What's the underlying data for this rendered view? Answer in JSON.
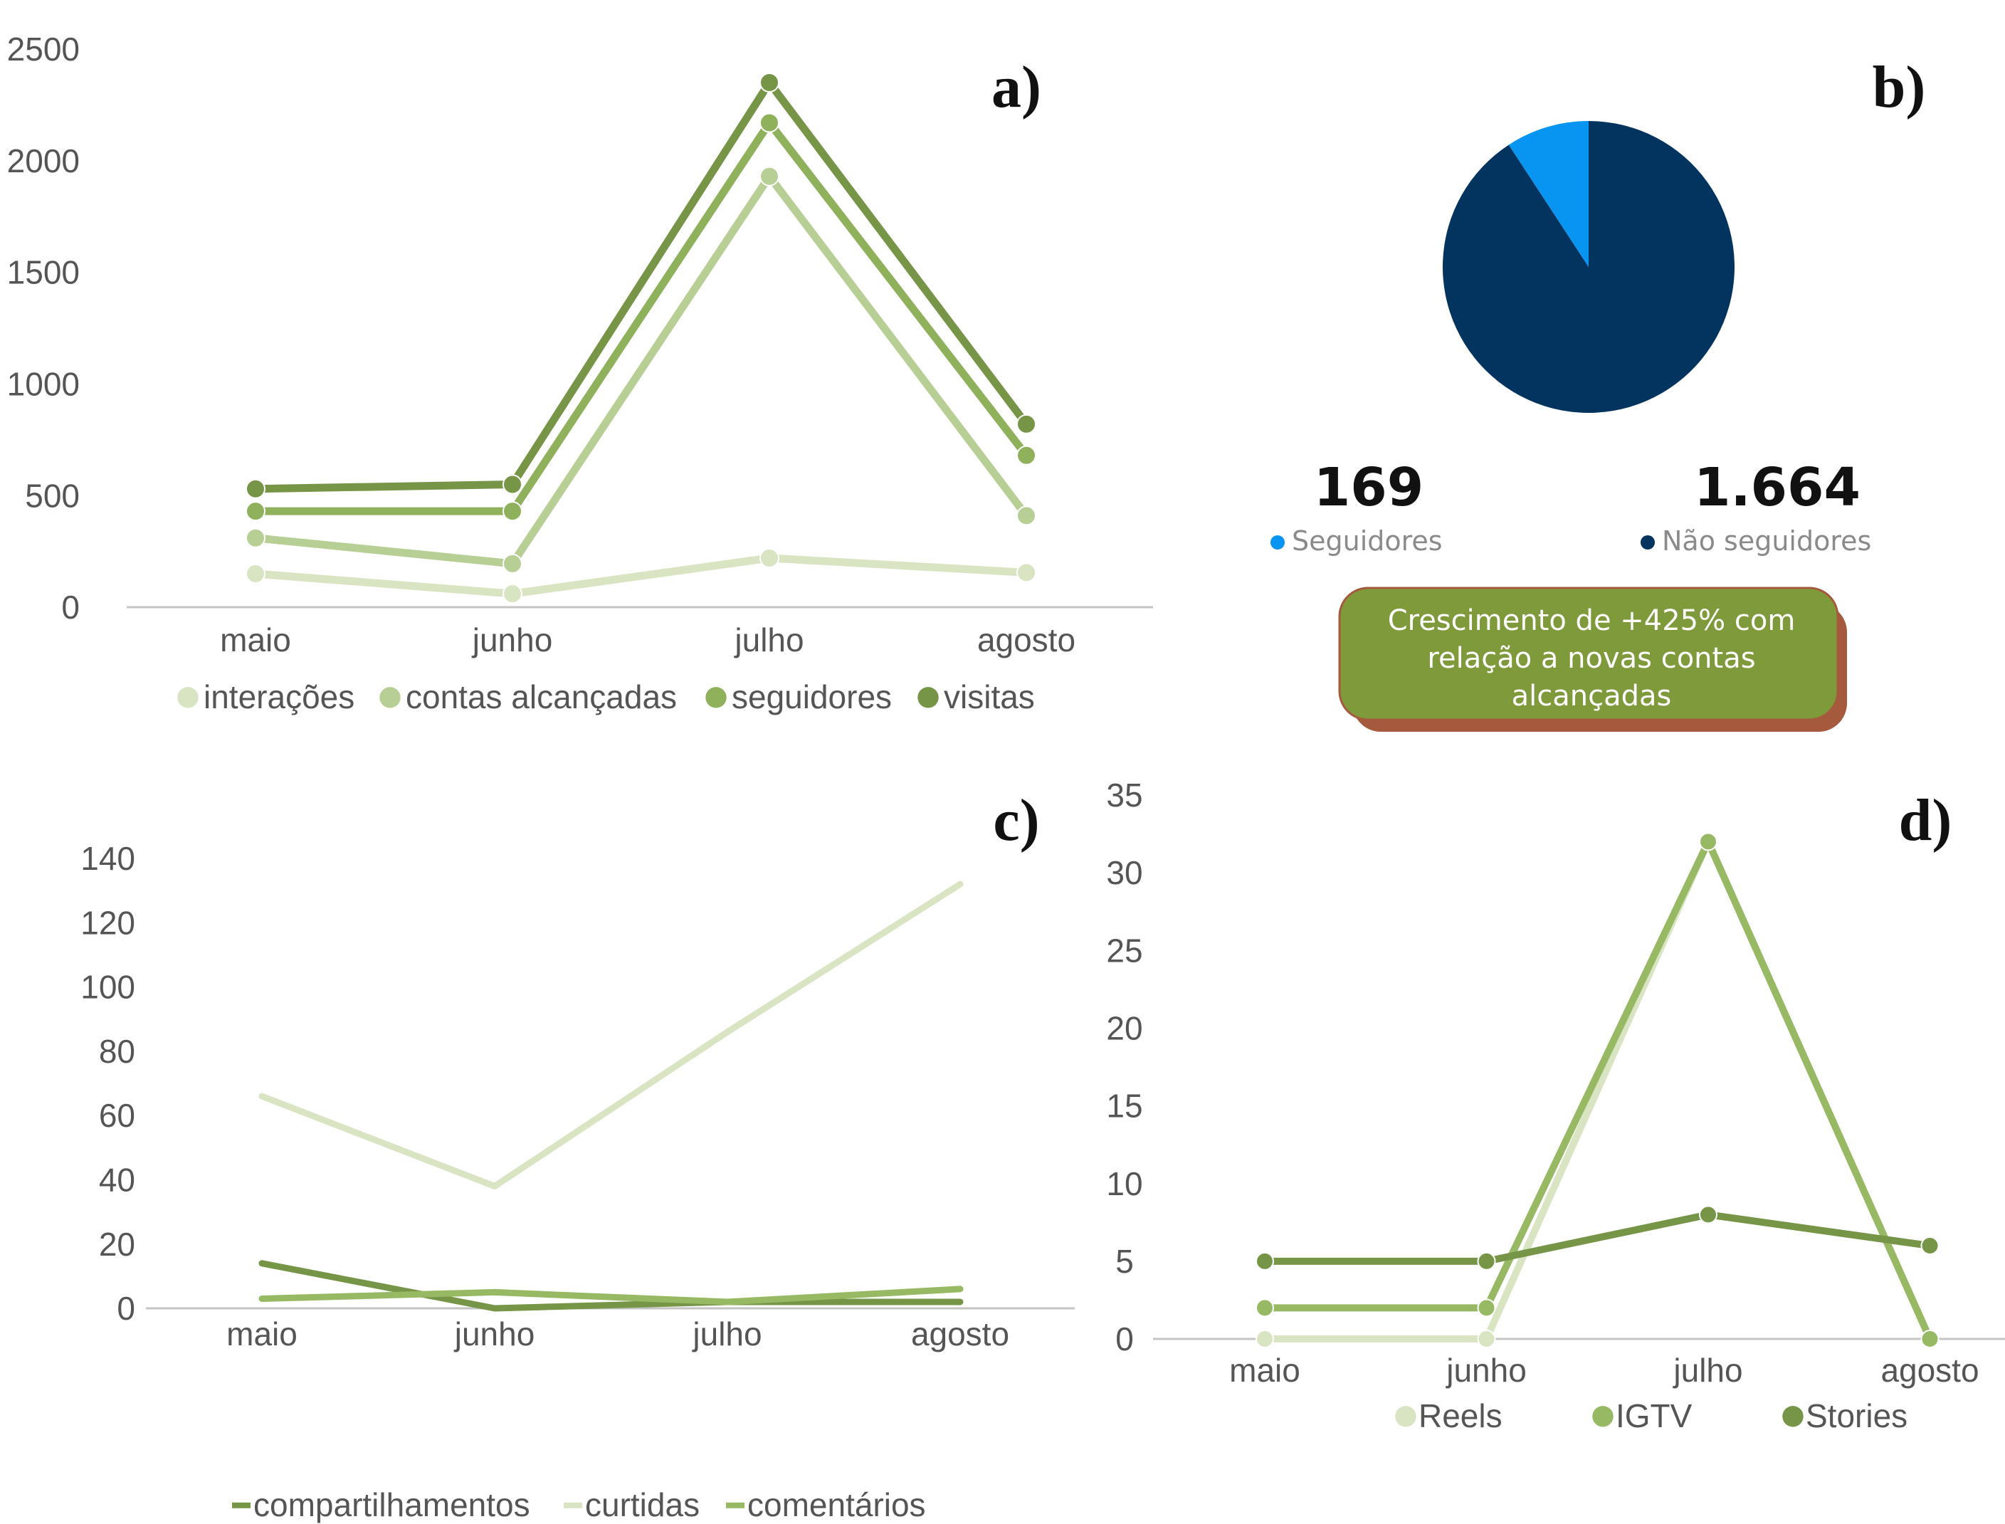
{
  "chart_data": [
    {
      "panel": "a)",
      "type": "line",
      "categories": [
        "maio",
        "junho",
        "julho",
        "agosto"
      ],
      "ylim": [
        0,
        2500
      ],
      "yticks": [
        "0",
        "500",
        "1000",
        "1500",
        "2000",
        "2500"
      ],
      "legend_position": "bottom",
      "series": [
        {
          "name": "interações",
          "values": [
            150,
            60,
            220,
            155
          ],
          "color": "#d8e4c2"
        },
        {
          "name": "contas alcançadas",
          "values": [
            310,
            195,
            1930,
            410
          ],
          "color": "#b7cf94"
        },
        {
          "name": "seguidores",
          "values": [
            430,
            430,
            2170,
            680
          ],
          "color": "#8fb15c"
        },
        {
          "name": "visitas",
          "values": [
            530,
            550,
            2350,
            820
          ],
          "color": "#769546"
        }
      ]
    },
    {
      "panel": "b)",
      "type": "pie",
      "slices": [
        {
          "name": "Seguidores",
          "value": 169,
          "display": "169",
          "color": "#0795f1"
        },
        {
          "name": "Não seguidores",
          "value": 1664,
          "display": "1.664",
          "color": "#02345f"
        }
      ],
      "callout": {
        "lines": [
          "Crescimento de +425% com",
          "relação a novas contas",
          "alcançadas"
        ],
        "fill": "#7f9a3b",
        "shadow": "#a55a3e"
      }
    },
    {
      "panel": "c)",
      "type": "line",
      "categories": [
        "maio",
        "junho",
        "julho",
        "agosto"
      ],
      "ylim": [
        0,
        140
      ],
      "yticks": [
        "0",
        "20",
        "40",
        "60",
        "80",
        "100",
        "120",
        "140"
      ],
      "legend_position": "bottom",
      "series": [
        {
          "name": "compartilhamentos",
          "values": [
            14,
            0,
            2,
            2
          ],
          "color": "#769546"
        },
        {
          "name": "curtidas",
          "values": [
            66,
            38,
            86,
            132
          ],
          "color": "#d8e4c2"
        },
        {
          "name": "comentários",
          "values": [
            3,
            5,
            2,
            6
          ],
          "color": "#97b964"
        }
      ]
    },
    {
      "panel": "d)",
      "type": "line",
      "categories": [
        "maio",
        "junho",
        "julho",
        "agosto"
      ],
      "ylim": [
        0,
        35
      ],
      "yticks": [
        "0",
        "5",
        "10",
        "15",
        "20",
        "25",
        "30",
        "35"
      ],
      "legend_position": "bottom",
      "series": [
        {
          "name": "Reels",
          "values": [
            0,
            0,
            32,
            0
          ],
          "color": "#d8e4c2"
        },
        {
          "name": "IGTV",
          "values": [
            2,
            2,
            32,
            0
          ],
          "color": "#97b964"
        },
        {
          "name": "Stories",
          "values": [
            5,
            5,
            8,
            6
          ],
          "color": "#769546"
        }
      ]
    }
  ]
}
